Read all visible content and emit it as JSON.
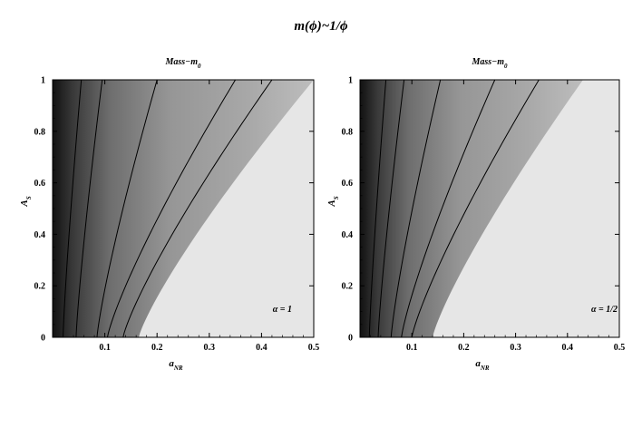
{
  "figure": {
    "suptitle": "m(ϕ)~1/ϕ"
  },
  "chart_data": [
    {
      "type": "heatmap",
      "title": "Mass−m",
      "title_subscript": "0",
      "xlabel": "a",
      "xlabel_subscript": "NR",
      "ylabel": "A",
      "ylabel_subscript": "S",
      "annotation": "α = 1",
      "xlim": [
        0.0,
        0.5
      ],
      "ylim": [
        0,
        1
      ],
      "xticks": [
        0.1,
        0.2,
        0.3,
        0.4,
        0.5
      ],
      "xtick_labels": [
        "0.1",
        "0.2",
        "0.3",
        "0.4",
        "0.5"
      ],
      "yticks": [
        0,
        0.2,
        0.4,
        0.6,
        0.8,
        1
      ],
      "ytick_labels": [
        "0",
        "0.2",
        "0.4",
        "0.6",
        "0.8",
        "1"
      ],
      "contours": [
        {
          "x_at_bottom": 0.02,
          "x_at_top": 0.055
        },
        {
          "x_at_bottom": 0.045,
          "x_at_top": 0.095
        },
        {
          "x_at_bottom": 0.085,
          "x_at_top": 0.2
        },
        {
          "x_at_bottom": 0.105,
          "x_at_top": 0.35
        },
        {
          "x_at_bottom": 0.135,
          "x_at_top": 0.42
        }
      ],
      "filled_region_edge": {
        "x_at_bottom": 0.165,
        "x_at_top": 0.5
      },
      "colors": {
        "dark": "#111111",
        "mid": "#a8a8a8",
        "outer": "#bdbdbd",
        "background": "#e6e6e6"
      }
    },
    {
      "type": "heatmap",
      "title": "Mass−m",
      "title_subscript": "0",
      "xlabel": "a",
      "xlabel_subscript": "NR",
      "ylabel": "A",
      "ylabel_subscript": "S",
      "annotation": "α = 1/2",
      "xlim": [
        0.0,
        0.5
      ],
      "ylim": [
        0,
        1
      ],
      "xticks": [
        0.1,
        0.2,
        0.3,
        0.4,
        0.5
      ],
      "xtick_labels": [
        "0.1",
        "0.2",
        "0.3",
        "0.4",
        "0.5"
      ],
      "yticks": [
        0,
        0.2,
        0.4,
        0.6,
        0.8,
        1
      ],
      "ytick_labels": [
        "0",
        "0.2",
        "0.4",
        "0.6",
        "0.8",
        "1"
      ],
      "contours": [
        {
          "x_at_bottom": 0.018,
          "x_at_top": 0.05
        },
        {
          "x_at_bottom": 0.035,
          "x_at_top": 0.085
        },
        {
          "x_at_bottom": 0.06,
          "x_at_top": 0.155
        },
        {
          "x_at_bottom": 0.08,
          "x_at_top": 0.26
        },
        {
          "x_at_bottom": 0.1,
          "x_at_top": 0.345
        }
      ],
      "filled_region_edge": {
        "x_at_bottom": 0.14,
        "x_at_top": 0.43
      },
      "colors": {
        "dark": "#111111",
        "mid": "#a8a8a8",
        "outer": "#bdbdbd",
        "background": "#e6e6e6"
      }
    }
  ]
}
